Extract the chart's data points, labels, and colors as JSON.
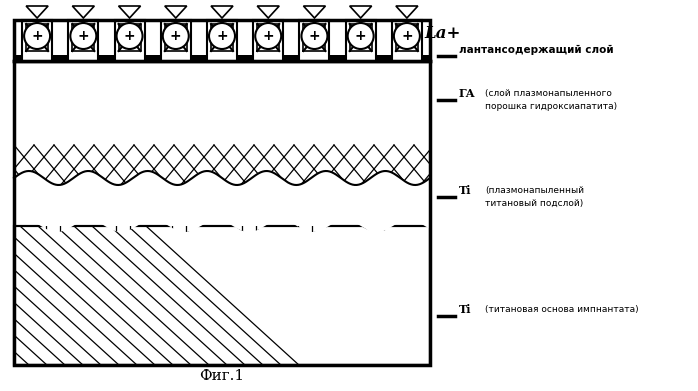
{
  "background_color": "#ffffff",
  "label_la": "La+",
  "label_layer1": "лантансодержащий слой",
  "label_ga": "ГА",
  "label_ga_desc1": "(слой плазмонапыленного",
  "label_ga_desc2": "порошка гидроксиапатита)",
  "label_ti1": "Ti",
  "label_ti1_desc1": "(плазмонапыленный",
  "label_ti1_desc2": "титановый подслой)",
  "label_ti2": "Ti",
  "label_ti2_desc": "(титановая основа импнантата)",
  "fig_label": "Фиг.1",
  "n_ions": 9,
  "n_teeth": 9
}
